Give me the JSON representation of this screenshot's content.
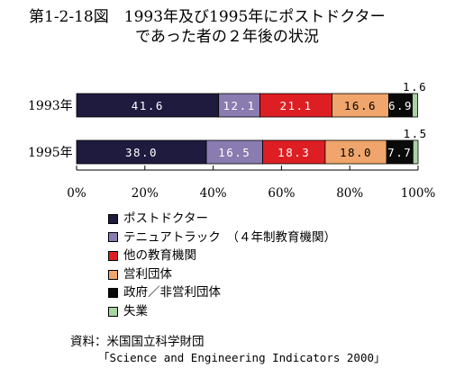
{
  "title": {
    "line1": "第1-2-18図　1993年及び1995年にポストドクター",
    "line2": "であった者の２年後の状況"
  },
  "chart_data": {
    "type": "bar",
    "stacked": true,
    "orientation": "horizontal",
    "categories": [
      "1993年",
      "1995年"
    ],
    "series": [
      {
        "name": "ポストドクター",
        "values": [
          41.6,
          38.0
        ],
        "labels": [
          "41.6",
          "38.0"
        ],
        "color": "#1e1b3f"
      },
      {
        "name": "テニュアトラック　（４年制教育機関）",
        "values": [
          12.1,
          16.5
        ],
        "labels": [
          "12.1",
          "16.5"
        ],
        "color": "#8a7bb0"
      },
      {
        "name": "他の教育機関",
        "values": [
          21.1,
          18.3
        ],
        "labels": [
          "21.1",
          "18.3"
        ],
        "color": "#dd1f23"
      },
      {
        "name": "営利団体",
        "values": [
          16.6,
          18.0
        ],
        "labels": [
          "16.6",
          "18.0"
        ],
        "color": "#efa56c"
      },
      {
        "name": "政府／非営利団体",
        "values": [
          6.9,
          7.7
        ],
        "labels": [
          "6.9",
          "7.7"
        ],
        "color": "#0a0a0a"
      },
      {
        "name": "失業",
        "values": [
          1.6,
          1.5
        ],
        "labels": [
          "1.6",
          "1.5"
        ],
        "color": "#a8d4a2"
      }
    ],
    "xlim": [
      0,
      100
    ],
    "xticks": [
      "0%",
      "20%",
      "40%",
      "60%",
      "80%",
      "100%"
    ],
    "grid": false,
    "legend_placement": "bottom"
  },
  "source": {
    "line1": "資料：米国国立科学財団",
    "line2": "「Science and Engineering Indicators 2000」"
  }
}
